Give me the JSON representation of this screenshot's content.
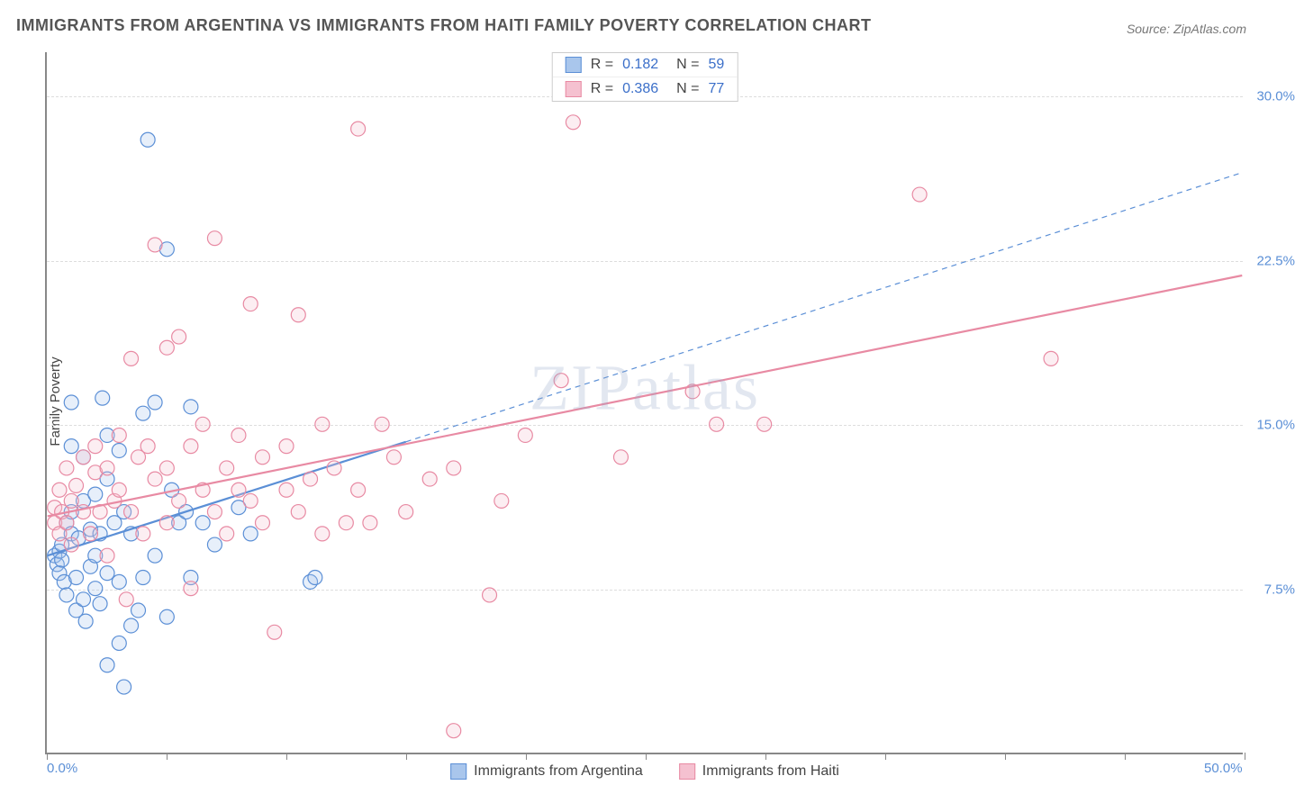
{
  "title": "IMMIGRANTS FROM ARGENTINA VS IMMIGRANTS FROM HAITI FAMILY POVERTY CORRELATION CHART",
  "source": "Source: ZipAtlas.com",
  "watermark": "ZIPatlas",
  "chart": {
    "type": "scatter",
    "ylabel": "Family Poverty",
    "xlim": [
      0,
      50
    ],
    "ylim": [
      0,
      32
    ],
    "xtick_positions": [
      0,
      5,
      10,
      15,
      20,
      25,
      30,
      35,
      40,
      45,
      50
    ],
    "xtick_labels": {
      "0": "0.0%",
      "50": "50.0%"
    },
    "ytick_positions": [
      7.5,
      15.0,
      22.5,
      30.0
    ],
    "ytick_labels": [
      "7.5%",
      "15.0%",
      "22.5%",
      "30.0%"
    ],
    "grid_color": "#dddddd",
    "axis_color": "#888888",
    "background_color": "#ffffff",
    "tick_label_color": "#5b8fd6",
    "marker_radius": 8,
    "marker_stroke_width": 1.2,
    "marker_fill_opacity": 0.28,
    "trend_line_width": 2.2,
    "series": [
      {
        "name": "Immigrants from Argentina",
        "color_stroke": "#5b8fd6",
        "color_fill": "#a9c6ec",
        "R": "0.182",
        "N": "59",
        "trend": {
          "x1": 0,
          "y1": 9.0,
          "x2_solid": 15,
          "y2_solid": 14.2,
          "x2_dash": 50,
          "y2_dash": 26.5
        },
        "points": [
          [
            0.3,
            9.0
          ],
          [
            0.4,
            8.6
          ],
          [
            0.5,
            9.2
          ],
          [
            0.5,
            8.2
          ],
          [
            0.6,
            8.8
          ],
          [
            0.6,
            9.5
          ],
          [
            0.7,
            7.8
          ],
          [
            0.8,
            10.5
          ],
          [
            0.8,
            7.2
          ],
          [
            1.0,
            11.0
          ],
          [
            1.0,
            10.0
          ],
          [
            1.0,
            14.0
          ],
          [
            1.0,
            16.0
          ],
          [
            1.2,
            6.5
          ],
          [
            1.2,
            8.0
          ],
          [
            1.3,
            9.8
          ],
          [
            1.5,
            7.0
          ],
          [
            1.5,
            11.5
          ],
          [
            1.5,
            13.5
          ],
          [
            1.6,
            6.0
          ],
          [
            1.8,
            10.2
          ],
          [
            1.8,
            8.5
          ],
          [
            2.0,
            7.5
          ],
          [
            2.0,
            9.0
          ],
          [
            2.0,
            11.8
          ],
          [
            2.2,
            6.8
          ],
          [
            2.2,
            10.0
          ],
          [
            2.3,
            16.2
          ],
          [
            2.5,
            8.2
          ],
          [
            2.5,
            12.5
          ],
          [
            2.5,
            14.5
          ],
          [
            2.5,
            4.0
          ],
          [
            2.8,
            10.5
          ],
          [
            3.0,
            7.8
          ],
          [
            3.0,
            5.0
          ],
          [
            3.0,
            13.8
          ],
          [
            3.2,
            3.0
          ],
          [
            3.2,
            11.0
          ],
          [
            3.5,
            10.0
          ],
          [
            3.5,
            5.8
          ],
          [
            3.8,
            6.5
          ],
          [
            4.0,
            8.0
          ],
          [
            4.0,
            15.5
          ],
          [
            4.2,
            28.0
          ],
          [
            4.5,
            9.0
          ],
          [
            4.5,
            16.0
          ],
          [
            5.0,
            6.2
          ],
          [
            5.0,
            23.0
          ],
          [
            5.2,
            12.0
          ],
          [
            5.5,
            10.5
          ],
          [
            5.8,
            11.0
          ],
          [
            6.0,
            8.0
          ],
          [
            6.0,
            15.8
          ],
          [
            6.5,
            10.5
          ],
          [
            7.0,
            9.5
          ],
          [
            8.0,
            11.2
          ],
          [
            8.5,
            10.0
          ],
          [
            11.0,
            7.8
          ],
          [
            11.2,
            8.0
          ]
        ]
      },
      {
        "name": "Immigrants from Haiti",
        "color_stroke": "#e88aa3",
        "color_fill": "#f5c1d0",
        "R": "0.386",
        "N": "77",
        "trend": {
          "x1": 0,
          "y1": 10.8,
          "x2_solid": 50,
          "y2_solid": 21.8,
          "x2_dash": 50,
          "y2_dash": 21.8
        },
        "points": [
          [
            0.3,
            10.5
          ],
          [
            0.3,
            11.2
          ],
          [
            0.5,
            10.0
          ],
          [
            0.5,
            12.0
          ],
          [
            0.6,
            11.0
          ],
          [
            0.8,
            10.5
          ],
          [
            0.8,
            13.0
          ],
          [
            1.0,
            11.5
          ],
          [
            1.0,
            9.5
          ],
          [
            1.2,
            12.2
          ],
          [
            1.5,
            11.0
          ],
          [
            1.5,
            13.5
          ],
          [
            1.8,
            10.0
          ],
          [
            2.0,
            12.8
          ],
          [
            2.0,
            14.0
          ],
          [
            2.2,
            11.0
          ],
          [
            2.5,
            13.0
          ],
          [
            2.5,
            9.0
          ],
          [
            2.8,
            11.5
          ],
          [
            3.0,
            14.5
          ],
          [
            3.0,
            12.0
          ],
          [
            3.3,
            7.0
          ],
          [
            3.5,
            11.0
          ],
          [
            3.5,
            18.0
          ],
          [
            3.8,
            13.5
          ],
          [
            4.0,
            10.0
          ],
          [
            4.2,
            14.0
          ],
          [
            4.5,
            12.5
          ],
          [
            4.5,
            23.2
          ],
          [
            5.0,
            10.5
          ],
          [
            5.0,
            13.0
          ],
          [
            5.0,
            18.5
          ],
          [
            5.5,
            19.0
          ],
          [
            5.5,
            11.5
          ],
          [
            6.0,
            14.0
          ],
          [
            6.0,
            7.5
          ],
          [
            6.5,
            12.0
          ],
          [
            6.5,
            15.0
          ],
          [
            7.0,
            11.0
          ],
          [
            7.0,
            23.5
          ],
          [
            7.5,
            13.0
          ],
          [
            7.5,
            10.0
          ],
          [
            8.0,
            14.5
          ],
          [
            8.0,
            12.0
          ],
          [
            8.5,
            11.5
          ],
          [
            8.5,
            20.5
          ],
          [
            9.0,
            10.5
          ],
          [
            9.0,
            13.5
          ],
          [
            9.5,
            5.5
          ],
          [
            10.0,
            14.0
          ],
          [
            10.0,
            12.0
          ],
          [
            10.5,
            11.0
          ],
          [
            10.5,
            20.0
          ],
          [
            11.0,
            12.5
          ],
          [
            11.5,
            15.0
          ],
          [
            11.5,
            10.0
          ],
          [
            12.0,
            13.0
          ],
          [
            12.5,
            10.5
          ],
          [
            13.0,
            12.0
          ],
          [
            13.0,
            28.5
          ],
          [
            13.5,
            10.5
          ],
          [
            14.0,
            15.0
          ],
          [
            14.5,
            13.5
          ],
          [
            15.0,
            11.0
          ],
          [
            16.0,
            12.5
          ],
          [
            17.0,
            13.0
          ],
          [
            17.0,
            1.0
          ],
          [
            18.5,
            7.2
          ],
          [
            19.0,
            11.5
          ],
          [
            20.0,
            14.5
          ],
          [
            21.5,
            17.0
          ],
          [
            22.0,
            28.8
          ],
          [
            24.0,
            13.5
          ],
          [
            27.0,
            16.5
          ],
          [
            28.0,
            15.0
          ],
          [
            30.0,
            15.0
          ],
          [
            36.5,
            25.5
          ],
          [
            42.0,
            18.0
          ]
        ]
      }
    ]
  },
  "legend_top": {
    "r_prefix": "R  = ",
    "n_prefix": "N  = "
  }
}
